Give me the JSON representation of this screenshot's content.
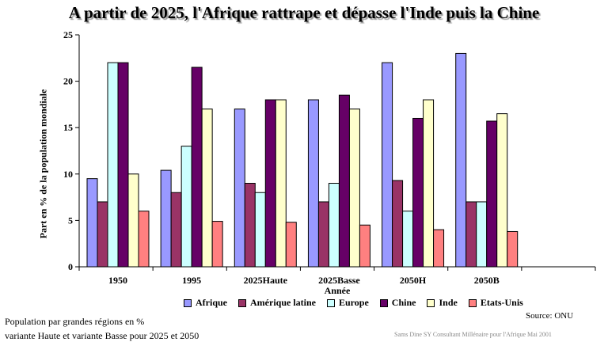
{
  "title": "A partir de 2025, l'Afrique rattrape et dépasse l'Inde puis la Chine",
  "source": "Source: ONU",
  "notes": [
    "Population par grandes régions en %",
    "variante Haute et variante  Basse pour 2025 et 2050"
  ],
  "credit": "Sams Dine  SY Consultant   Millénaire  pour l'Afrique   Mai 2001",
  "chart_data": {
    "type": "bar",
    "title": "A partir de 2025, l'Afrique rattrape et dépasse l'Inde puis la Chine",
    "ylabel": "Part en % de la population mondiale",
    "xlabel": "Année",
    "categories": [
      "1950",
      "1995",
      "2025Haute",
      "2025Basse",
      "2050H",
      "2050B"
    ],
    "ylim": [
      0,
      25
    ],
    "yticks": [
      0,
      5,
      10,
      15,
      20,
      25
    ],
    "grid": false,
    "legend_position": "bottom",
    "series": [
      {
        "name": "Afrique",
        "color": "#9999ff",
        "values": [
          9.5,
          10.4,
          17,
          18,
          22,
          23
        ]
      },
      {
        "name": "Amérique latine",
        "color": "#993366",
        "values": [
          7,
          8,
          9,
          7,
          9.3,
          7
        ]
      },
      {
        "name": "Europe",
        "color": "#ccffff",
        "values": [
          22,
          13,
          8,
          9,
          6,
          7
        ]
      },
      {
        "name": "Chine",
        "color": "#660066",
        "values": [
          22,
          21.5,
          18,
          18.5,
          16,
          15.7
        ]
      },
      {
        "name": "Inde",
        "color": "#ffffcc",
        "values": [
          10,
          17,
          18,
          17,
          18,
          16.5
        ]
      },
      {
        "name": "Etats-Unis",
        "color": "#ff8080",
        "values": [
          6,
          4.9,
          4.8,
          4.5,
          4,
          3.8
        ]
      }
    ]
  }
}
